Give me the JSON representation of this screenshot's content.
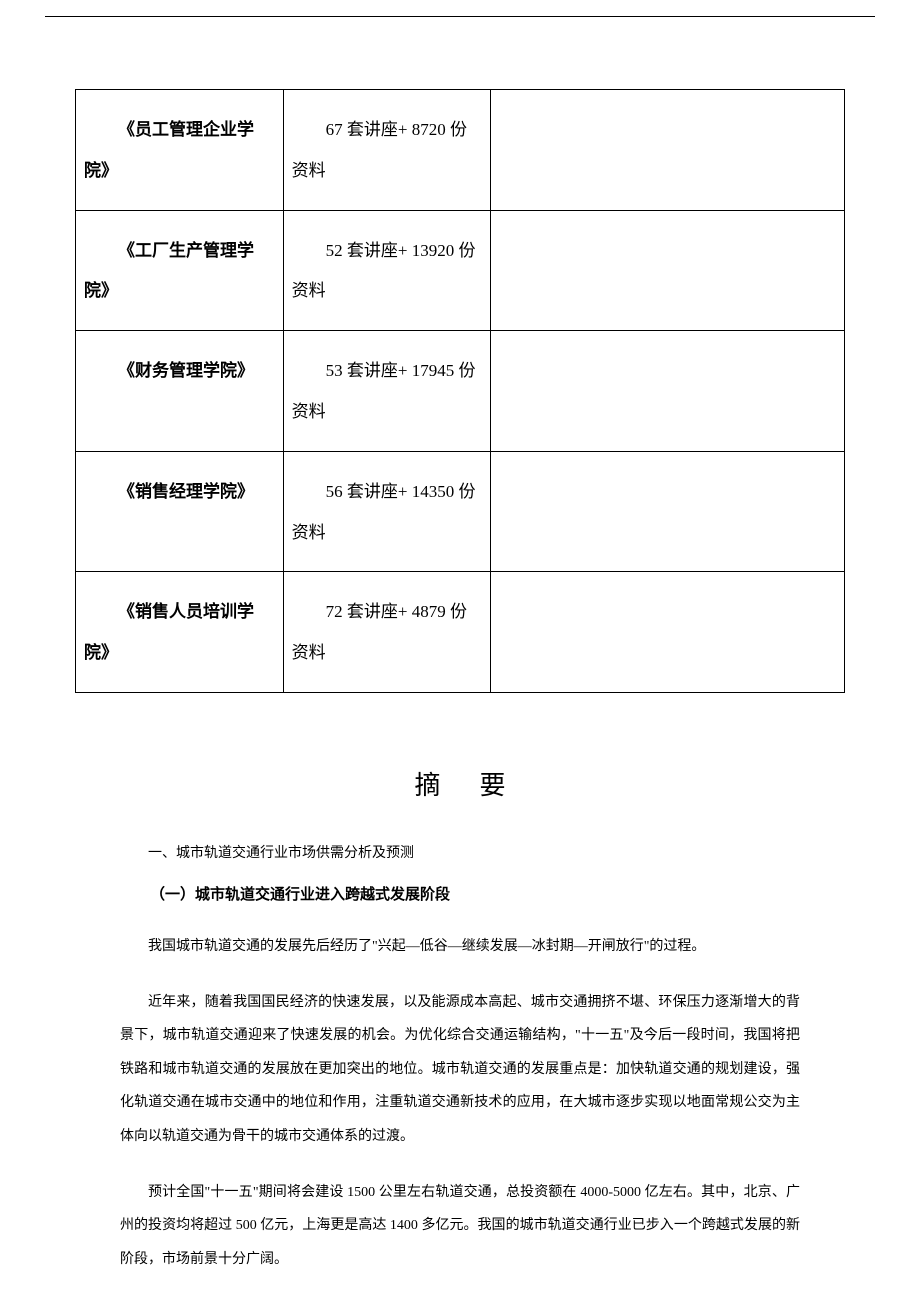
{
  "table": {
    "rows": [
      {
        "col1": "《员工管理企业学院》",
        "col2": "67 套讲座+ 8720 份资料",
        "col3": ""
      },
      {
        "col1": "《工厂生产管理学院》",
        "col2": "52 套讲座+ 13920 份资料",
        "col3": ""
      },
      {
        "col1": "《财务管理学院》",
        "col2": "53 套讲座+ 17945 份资料",
        "col3": ""
      },
      {
        "col1": "《销售经理学院》",
        "col2": "56 套讲座+ 14350 份资料",
        "col3": ""
      },
      {
        "col1": "《销售人员培训学院》",
        "col2": "72 套讲座+ 4879 份资料",
        "col3": ""
      }
    ]
  },
  "abstract_title": "摘要",
  "section_1_label": "一、城市轨道交通行业市场供需分析及预测",
  "subsection_1_label": "（一）城市轨道交通行业进入跨越式发展阶段",
  "paragraph_1": "我国城市轨道交通的发展先后经历了\"兴起—低谷—继续发展—冰封期—开闸放行\"的过程。",
  "paragraph_2": "近年来，随着我国国民经济的快速发展，以及能源成本高起、城市交通拥挤不堪、环保压力逐渐增大的背景下，城市轨道交通迎来了快速发展的机会。为优化综合交通运输结构，\"十一五\"及今后一段时间，我国将把铁路和城市轨道交通的发展放在更加突出的地位。城市轨道交通的发展重点是：加快轨道交通的规划建设，强化轨道交通在城市交通中的地位和作用，注重轨道交通新技术的应用，在大城市逐步实现以地面常规公交为主体向以轨道交通为骨干的城市交通体系的过渡。",
  "paragraph_3": "预计全国\"十一五\"期间将会建设 1500 公里左右轨道交通，总投资额在 4000-5000 亿左右。其中，北京、广州的投资均将超过 500 亿元，上海更是高达 1400 多亿元。我国的城市轨道交通行业已步入一个跨越式发展的新阶段，市场前景十分广阔。"
}
